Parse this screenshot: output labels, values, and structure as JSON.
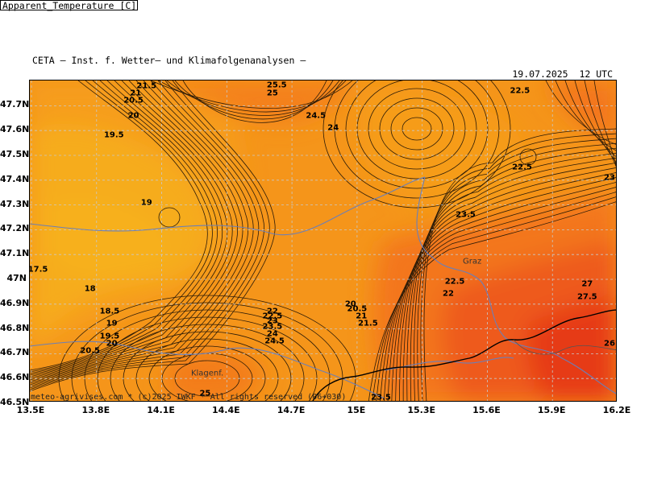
{
  "header": {
    "provider": "CETA – Inst. f. Wetter– und Klimafolgenanalysen –",
    "variable": "Apparent_Temperature [C]",
    "datetime": "19.07.2025  12 UTC"
  },
  "axes": {
    "lat_labels": [
      "47.7N",
      "47.6N",
      "47.5N",
      "47.4N",
      "47.3N",
      "47.2N",
      "47.1N",
      "47N",
      "46.9N",
      "46.8N",
      "46.7N",
      "46.6N",
      "46.5N"
    ],
    "lon_labels": [
      "13.5E",
      "13.8E",
      "14.1E",
      "14.4E",
      "14.7E",
      "15E",
      "15.3E",
      "15.6E",
      "15.9E",
      "16.2E"
    ],
    "lat_range": [
      46.5,
      47.8
    ],
    "lon_range": [
      13.5,
      16.2
    ],
    "grid": "dashed"
  },
  "places": [
    {
      "name": "Graz",
      "lon": 15.53,
      "lat": 47.07
    },
    {
      "name": "Klagenf.",
      "lon": 14.31,
      "lat": 46.62
    }
  ],
  "contour_labels": [
    {
      "text": "25.5",
      "lon": 14.63,
      "lat": 47.79
    },
    {
      "text": "25",
      "lon": 14.61,
      "lat": 47.75
    },
    {
      "text": "22.5",
      "lon": 15.75,
      "lat": 47.76
    },
    {
      "text": "21.5",
      "lon": 14.03,
      "lat": 47.78
    },
    {
      "text": "21",
      "lon": 13.98,
      "lat": 47.75
    },
    {
      "text": "20.5",
      "lon": 13.97,
      "lat": 47.72
    },
    {
      "text": "24.5",
      "lon": 14.81,
      "lat": 47.66
    },
    {
      "text": "20",
      "lon": 13.97,
      "lat": 47.66
    },
    {
      "text": "24",
      "lon": 14.89,
      "lat": 47.61
    },
    {
      "text": "19.5",
      "lon": 13.88,
      "lat": 47.58
    },
    {
      "text": "22.5",
      "lon": 15.76,
      "lat": 47.45
    },
    {
      "text": "23",
      "lon": 16.28,
      "lat": 47.41
    },
    {
      "text": "19",
      "lon": 14.03,
      "lat": 47.31
    },
    {
      "text": "23.5",
      "lon": 15.5,
      "lat": 47.26
    },
    {
      "text": "17.5",
      "lon": 13.53,
      "lat": 47.04
    },
    {
      "text": "22.5",
      "lon": 15.45,
      "lat": 46.99
    },
    {
      "text": "27",
      "lon": 16.06,
      "lat": 46.98
    },
    {
      "text": "18",
      "lon": 13.77,
      "lat": 46.96
    },
    {
      "text": "22",
      "lon": 15.42,
      "lat": 46.94
    },
    {
      "text": "27.5",
      "lon": 16.06,
      "lat": 46.93
    },
    {
      "text": "20",
      "lon": 14.97,
      "lat": 46.9
    },
    {
      "text": "18.5",
      "lon": 13.86,
      "lat": 46.87
    },
    {
      "text": "20.5",
      "lon": 15.0,
      "lat": 46.88
    },
    {
      "text": "22",
      "lon": 14.61,
      "lat": 46.87
    },
    {
      "text": "22.5",
      "lon": 14.61,
      "lat": 46.85
    },
    {
      "text": "21",
      "lon": 15.02,
      "lat": 46.85
    },
    {
      "text": "23",
      "lon": 14.61,
      "lat": 46.83
    },
    {
      "text": "21.5",
      "lon": 15.05,
      "lat": 46.82
    },
    {
      "text": "19",
      "lon": 13.87,
      "lat": 46.82
    },
    {
      "text": "23.5",
      "lon": 14.61,
      "lat": 46.81
    },
    {
      "text": "24",
      "lon": 14.61,
      "lat": 46.78
    },
    {
      "text": "19.5",
      "lon": 13.86,
      "lat": 46.77
    },
    {
      "text": "24.5",
      "lon": 14.62,
      "lat": 46.75
    },
    {
      "text": "20",
      "lon": 13.87,
      "lat": 46.74
    },
    {
      "text": "26",
      "lon": 16.33,
      "lat": 46.74
    },
    {
      "text": "20.5",
      "lon": 13.77,
      "lat": 46.71
    },
    {
      "text": "25",
      "lon": 14.3,
      "lat": 46.54
    },
    {
      "text": "23.5",
      "lon": 15.11,
      "lat": 46.51
    }
  ],
  "copyright": "meteo-agrivises.com * (c)2025 IWKF * All rights reserved (06+030)",
  "colors": {
    "yellow": "#f6b81c",
    "light_orange": "#f7a31a",
    "orange": "#f5951a",
    "dark_orange": "#f3761d",
    "red_orange": "#ee5a1c",
    "red": "#e63b17",
    "contour": "#2b1b08",
    "border": "#000000",
    "river": "#6b7fb8",
    "gridline": "#bbbbbb"
  }
}
